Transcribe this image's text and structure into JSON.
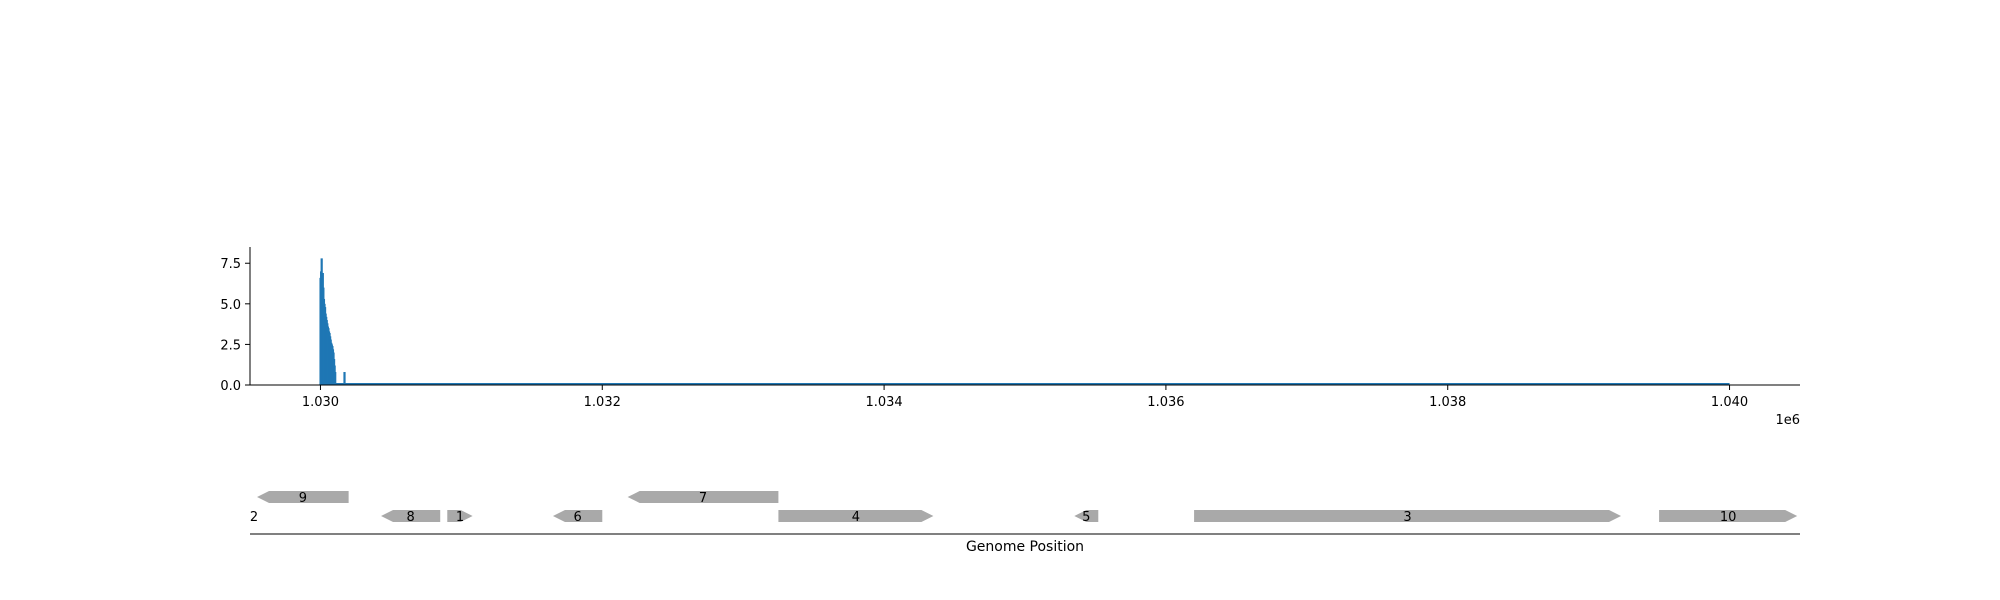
{
  "chart_data": {
    "type": "bar",
    "title": "",
    "xlabel": "Genome Position",
    "ylabel": "",
    "x_offset_label": "1e6",
    "xlim": [
      1029500,
      1040500
    ],
    "ylim": [
      0,
      8.5
    ],
    "xticks": [
      1030000,
      1032000,
      1034000,
      1036000,
      1038000,
      1040000
    ],
    "xtick_labels": [
      "1.030",
      "1.032",
      "1.034",
      "1.036",
      "1.038",
      "1.040"
    ],
    "yticks": [
      0,
      2.5,
      5,
      7.5
    ],
    "ytick_labels": [
      "0.0",
      "2.5",
      "5.0",
      "7.5"
    ],
    "grid": false,
    "colors": {
      "coverage": "#1f77b4",
      "gene": "#a9a9a9"
    },
    "coverage": {
      "x": [
        1030000,
        1030004,
        1030008,
        1030012,
        1030016,
        1030020,
        1030024,
        1030028,
        1030032,
        1030036,
        1030040,
        1030044,
        1030048,
        1030052,
        1030056,
        1030060,
        1030064,
        1030068,
        1030072,
        1030076,
        1030080,
        1030084,
        1030088,
        1030092,
        1030096,
        1030100,
        1030104,
        1030170
      ],
      "y": [
        6.6,
        7.0,
        7.8,
        6.5,
        6.9,
        6.0,
        5.3,
        5.0,
        4.8,
        4.4,
        4.2,
        4.0,
        3.8,
        3.6,
        3.5,
        3.3,
        3.2,
        3.0,
        2.8,
        2.6,
        2.5,
        2.4,
        2.2,
        2.0,
        1.6,
        1.2,
        0.8,
        0.8
      ],
      "baseline_end": 1040000
    },
    "genes": [
      {
        "label": "2",
        "start": 1029450,
        "end": 1029500,
        "strand": "-",
        "track": 1
      },
      {
        "label": "9",
        "start": 1029550,
        "end": 1030200,
        "strand": "-",
        "track": 0
      },
      {
        "label": "8",
        "start": 1030430,
        "end": 1030850,
        "strand": "-",
        "track": 1
      },
      {
        "label": "1",
        "start": 1030900,
        "end": 1031080,
        "strand": "+",
        "track": 1
      },
      {
        "label": "6",
        "start": 1031650,
        "end": 1032000,
        "strand": "-",
        "track": 1
      },
      {
        "label": "7",
        "start": 1032180,
        "end": 1033250,
        "strand": "-",
        "track": 0
      },
      {
        "label": "4",
        "start": 1033250,
        "end": 1034350,
        "strand": "+",
        "track": 1
      },
      {
        "label": "5",
        "start": 1035350,
        "end": 1035520,
        "strand": "-",
        "track": 1
      },
      {
        "label": "3",
        "start": 1036200,
        "end": 1039230,
        "strand": "+",
        "track": 1
      },
      {
        "label": "10",
        "start": 1039500,
        "end": 1040480,
        "strand": "+",
        "track": 1
      }
    ]
  }
}
